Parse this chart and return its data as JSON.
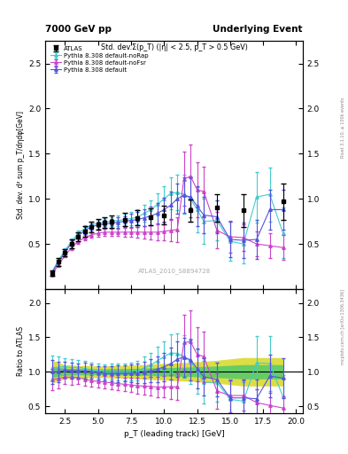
{
  "title_left": "7000 GeV pp",
  "title_right": "Underlying Event",
  "plot_title": "Std. dev.Σ(p_T) (|η| < 2.5, p_T > 0.5 GeV)",
  "ylabel_main": "Std. dev. d² sum p_T/dηdφ[GeV]",
  "ylabel_ratio": "Ratio to ATLAS",
  "xlabel": "p_T (leading track) [GeV]",
  "watermark": "ATLAS_2010_S8894728",
  "rivet_label": "Rivet 3.1.10, ≥ 100k events",
  "arxiv_label": "mcplots.cern.ch [arXiv:1306.3436]",
  "atlas_x": [
    1.5,
    2.0,
    2.5,
    3.0,
    3.5,
    4.0,
    4.5,
    5.0,
    5.5,
    6.0,
    7.0,
    8.0,
    9.0,
    10.0,
    12.0,
    14.0,
    16.0,
    19.0
  ],
  "atlas_y": [
    0.18,
    0.3,
    0.4,
    0.5,
    0.58,
    0.64,
    0.69,
    0.72,
    0.74,
    0.75,
    0.77,
    0.79,
    0.8,
    0.82,
    0.87,
    0.9,
    0.87,
    0.97
  ],
  "atlas_yerr": [
    0.03,
    0.04,
    0.04,
    0.05,
    0.05,
    0.06,
    0.06,
    0.06,
    0.06,
    0.07,
    0.07,
    0.08,
    0.09,
    0.1,
    0.12,
    0.15,
    0.18,
    0.2
  ],
  "pythia_default_x": [
    1.5,
    2.0,
    2.5,
    3.0,
    3.5,
    4.0,
    4.5,
    5.0,
    5.5,
    6.0,
    6.5,
    7.0,
    7.5,
    8.0,
    8.5,
    9.0,
    9.5,
    10.0,
    10.5,
    11.0,
    11.5,
    12.0,
    12.5,
    13.0,
    14.0,
    15.0,
    16.0,
    17.0,
    18.0,
    19.0
  ],
  "pythia_default_y": [
    0.18,
    0.3,
    0.41,
    0.51,
    0.59,
    0.65,
    0.69,
    0.71,
    0.72,
    0.73,
    0.74,
    0.75,
    0.76,
    0.77,
    0.79,
    0.81,
    0.84,
    0.88,
    0.93,
    1.0,
    1.04,
    1.02,
    0.92,
    0.82,
    0.8,
    0.55,
    0.54,
    0.55,
    0.88,
    0.88
  ],
  "pythia_default_yerr": [
    0.01,
    0.02,
    0.02,
    0.03,
    0.03,
    0.04,
    0.04,
    0.04,
    0.05,
    0.05,
    0.06,
    0.06,
    0.07,
    0.08,
    0.09,
    0.1,
    0.11,
    0.13,
    0.15,
    0.17,
    0.2,
    0.22,
    0.22,
    0.2,
    0.18,
    0.2,
    0.2,
    0.22,
    0.22,
    0.22
  ],
  "pythia_nofsr_x": [
    1.5,
    2.0,
    2.5,
    3.0,
    3.5,
    4.0,
    4.5,
    5.0,
    5.5,
    6.0,
    6.5,
    7.0,
    7.5,
    8.0,
    8.5,
    9.0,
    9.5,
    10.0,
    10.5,
    11.0,
    11.5,
    12.0,
    12.5,
    13.0,
    14.0,
    15.0,
    16.0,
    17.0,
    18.0,
    19.0
  ],
  "pythia_nofsr_y": [
    0.16,
    0.27,
    0.37,
    0.46,
    0.53,
    0.57,
    0.6,
    0.62,
    0.63,
    0.63,
    0.63,
    0.63,
    0.63,
    0.63,
    0.63,
    0.63,
    0.63,
    0.64,
    0.65,
    0.66,
    1.22,
    1.25,
    1.1,
    1.08,
    0.65,
    0.58,
    0.57,
    0.5,
    0.48,
    0.46
  ],
  "pythia_nofsr_yerr": [
    0.01,
    0.02,
    0.02,
    0.03,
    0.03,
    0.03,
    0.03,
    0.04,
    0.04,
    0.04,
    0.04,
    0.05,
    0.05,
    0.06,
    0.07,
    0.08,
    0.09,
    0.1,
    0.12,
    0.14,
    0.3,
    0.35,
    0.3,
    0.28,
    0.2,
    0.18,
    0.15,
    0.14,
    0.14,
    0.14
  ],
  "pythia_norap_x": [
    1.5,
    2.0,
    2.5,
    3.0,
    3.5,
    4.0,
    4.5,
    5.0,
    5.5,
    6.0,
    6.5,
    7.0,
    7.5,
    8.0,
    8.5,
    9.0,
    9.5,
    10.0,
    10.5,
    11.0,
    11.5,
    12.0,
    12.5,
    13.0,
    14.0,
    15.0,
    16.0,
    17.0,
    18.0,
    19.0
  ],
  "pythia_norap_y": [
    0.19,
    0.32,
    0.43,
    0.53,
    0.62,
    0.67,
    0.71,
    0.73,
    0.74,
    0.75,
    0.76,
    0.77,
    0.78,
    0.8,
    0.84,
    0.88,
    0.94,
    1.0,
    1.06,
    1.07,
    1.05,
    1.0,
    0.88,
    0.75,
    0.76,
    0.53,
    0.5,
    1.02,
    1.05,
    0.62
  ],
  "pythia_norap_yerr": [
    0.01,
    0.02,
    0.02,
    0.03,
    0.03,
    0.04,
    0.04,
    0.04,
    0.05,
    0.05,
    0.06,
    0.06,
    0.07,
    0.08,
    0.09,
    0.1,
    0.12,
    0.14,
    0.18,
    0.2,
    0.22,
    0.25,
    0.25,
    0.25,
    0.22,
    0.22,
    0.22,
    0.28,
    0.3,
    0.28
  ],
  "color_atlas": "#000000",
  "color_default": "#5555dd",
  "color_nofsr": "#cc44cc",
  "color_norap": "#44cccc",
  "ylim_main": [
    0.0,
    2.75
  ],
  "ylim_ratio": [
    0.4,
    2.2
  ],
  "xlim": [
    1.0,
    20.5
  ],
  "ratio_band_inner_color": "#66cc66",
  "ratio_band_outer_color": "#dddd44",
  "yticks_main": [
    0.5,
    1.0,
    1.5,
    2.0,
    2.5
  ],
  "yticks_ratio": [
    0.5,
    1.0,
    1.5,
    2.0
  ]
}
